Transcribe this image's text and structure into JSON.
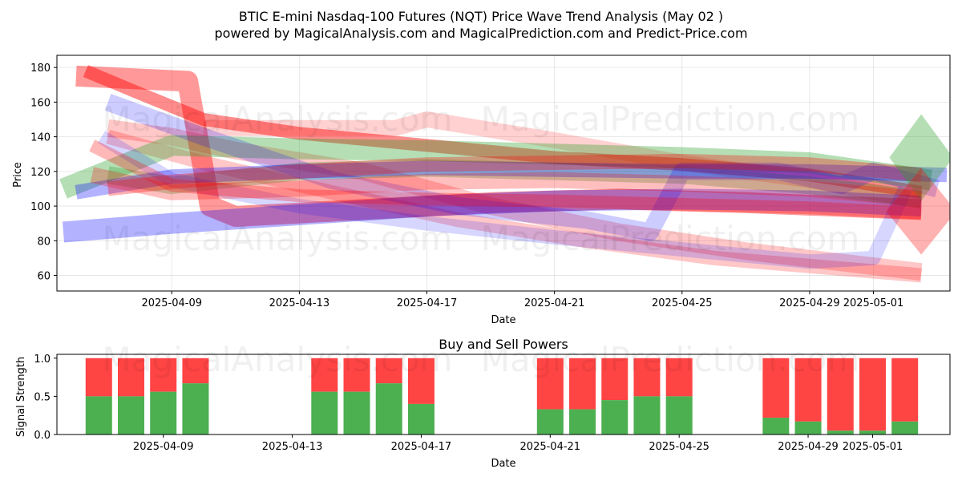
{
  "title_line1": "BTIC E-mini Nasdaq-100 Futures (NQT) Price Wave Trend Analysis (May 02 )",
  "title_line2": "powered by MagicalAnalysis.com and MagicalPrediction.com and Predict-Price.com",
  "watermarks": [
    "MagicalAnalysis.com",
    "MagicalPrediction.com"
  ],
  "colors": {
    "green": "#2ca02c",
    "red": "#ff0000",
    "blue": "#0000ff",
    "buy": "#4caf50",
    "sell": "#ff4444"
  },
  "chart_data": [
    {
      "type": "area",
      "title": "",
      "xlabel": "Date",
      "ylabel": "Price",
      "x_ticks": [
        "2025-04-09",
        "2025-04-13",
        "2025-04-17",
        "2025-04-21",
        "2025-04-25",
        "2025-04-29",
        "2025-05-01"
      ],
      "y_ticks": [
        60,
        80,
        100,
        120,
        140,
        160,
        180
      ],
      "xlim": [
        "2025-04-05.4",
        "2025-05-03.4"
      ],
      "ylim": [
        51,
        187
      ],
      "grid": true,
      "series": [
        {
          "color": "red",
          "opacity": 0.45,
          "width": 16,
          "points": [
            [
              "2025-04-06.3",
              178
            ],
            [
              "2025-04-08",
              165
            ],
            [
              "2025-04-10",
              150
            ],
            [
              "2025-04-13",
              142
            ],
            [
              "2025-04-17",
              135
            ],
            [
              "2025-04-21",
              128
            ],
            [
              "2025-04-25",
              124
            ],
            [
              "2025-04-29",
              118
            ],
            [
              "2025-05-02.5",
              108
            ]
          ]
        },
        {
          "color": "red",
          "opacity": 0.4,
          "width": 26,
          "points": [
            [
              "2025-04-06",
              175
            ],
            [
              "2025-04-09.5",
              172
            ],
            [
              "2025-04-10.2",
              100
            ],
            [
              "2025-04-11",
              94
            ],
            [
              "2025-04-15",
              98
            ],
            [
              "2025-04-19",
              102
            ],
            [
              "2025-04-23",
              104
            ],
            [
              "2025-04-27",
              102
            ],
            [
              "2025-05-02.5",
              98
            ]
          ]
        },
        {
          "color": "red",
          "opacity": 0.22,
          "width": 22,
          "points": [
            [
              "2025-04-07",
              145
            ],
            [
              "2025-04-09",
              140
            ],
            [
              "2025-04-11",
              132
            ],
            [
              "2025-04-15",
              120
            ],
            [
              "2025-04-19",
              100
            ],
            [
              "2025-04-23",
              85
            ],
            [
              "2025-04-27",
              74
            ],
            [
              "2025-05-02.5",
              62
            ]
          ]
        },
        {
          "color": "red",
          "opacity": 0.22,
          "width": 18,
          "points": [
            [
              "2025-04-07",
              140
            ],
            [
              "2025-04-10",
              125
            ],
            [
              "2025-04-14",
              108
            ],
            [
              "2025-04-18",
              92
            ],
            [
              "2025-04-22",
              80
            ],
            [
              "2025-04-26",
              70
            ],
            [
              "2025-05-02.5",
              60
            ]
          ]
        },
        {
          "color": "red",
          "opacity": 0.18,
          "width": 20,
          "points": [
            [
              "2025-04-10",
              145
            ],
            [
              "2025-04-14",
              145
            ],
            [
              "2025-04-16",
              145
            ],
            [
              "2025-04-17",
              150
            ],
            [
              "2025-04-21",
              138
            ],
            [
              "2025-04-25",
              125
            ],
            [
              "2025-04-29",
              115
            ],
            [
              "2025-05-02.5",
              103
            ]
          ]
        },
        {
          "color": "green",
          "opacity": 0.35,
          "width": 26,
          "points": [
            [
              "2025-04-05.6",
              110
            ],
            [
              "2025-04-09",
              135
            ],
            [
              "2025-04-13",
              133
            ],
            [
              "2025-04-17",
              132
            ],
            [
              "2025-04-21",
              130
            ],
            [
              "2025-04-25",
              128
            ],
            [
              "2025-04-29",
              125
            ],
            [
              "2025-05-02.8",
              115
            ]
          ]
        },
        {
          "color": "green",
          "opacity": 0.3,
          "width": 22,
          "points": [
            [
              "2025-04-07",
              118
            ],
            [
              "2025-04-09",
              112
            ],
            [
              "2025-04-13",
              120
            ],
            [
              "2025-04-17",
              122
            ],
            [
              "2025-04-21",
              120
            ],
            [
              "2025-04-25",
              118
            ],
            [
              "2025-04-29",
              112
            ],
            [
              "2025-05-02.5",
              104
            ]
          ]
        },
        {
          "color": "blue",
          "opacity": 0.3,
          "width": 26,
          "points": [
            [
              "2025-04-05.6",
              85
            ],
            [
              "2025-04-09",
              90
            ],
            [
              "2025-04-13",
              95
            ],
            [
              "2025-04-17",
              100
            ],
            [
              "2025-04-21",
              103
            ],
            [
              "2025-04-25",
              104
            ],
            [
              "2025-04-29",
              103
            ],
            [
              "2025-05-02.5",
              100
            ]
          ]
        },
        {
          "color": "blue",
          "opacity": 0.2,
          "width": 22,
          "points": [
            [
              "2025-04-07",
              160
            ],
            [
              "2025-04-10",
              140
            ],
            [
              "2025-04-14",
              115
            ],
            [
              "2025-04-18",
              100
            ],
            [
              "2025-04-22",
              92
            ],
            [
              "2025-04-24",
              85
            ],
            [
              "2025-04-25",
              120
            ],
            [
              "2025-04-28",
              120
            ],
            [
              "2025-04-30",
              112
            ],
            [
              "2025-05-01",
              120
            ],
            [
              "2025-05-03",
              110
            ]
          ]
        },
        {
          "color": "blue",
          "opacity": 0.16,
          "width": 18,
          "points": [
            [
              "2025-04-06.8",
              140
            ],
            [
              "2025-04-09",
              115
            ],
            [
              "2025-04-13",
              100
            ],
            [
              "2025-04-17",
              90
            ],
            [
              "2025-04-21",
              82
            ],
            [
              "2025-04-25",
              75
            ],
            [
              "2025-04-29",
              68
            ],
            [
              "2025-05-01",
              70
            ],
            [
              "2025-05-02",
              110
            ]
          ]
        },
        {
          "color": "blue",
          "opacity": 0.3,
          "width": 18,
          "points": [
            [
              "2025-04-06",
              108
            ],
            [
              "2025-04-09",
              117
            ],
            [
              "2025-04-13",
              120
            ],
            [
              "2025-04-17",
              122
            ],
            [
              "2025-04-21",
              121
            ],
            [
              "2025-04-25",
              120
            ],
            [
              "2025-04-29",
              120
            ],
            [
              "2025-05-03.3",
              118
            ]
          ]
        },
        {
          "color": "red",
          "opacity": 0.3,
          "width": 18,
          "points": [
            [
              "2025-04-07",
              110
            ],
            [
              "2025-04-09",
              114
            ],
            [
              "2025-04-13",
              120
            ],
            [
              "2025-04-17",
              124
            ],
            [
              "2025-04-21",
              125
            ],
            [
              "2025-04-25",
              126
            ],
            [
              "2025-04-29",
              124
            ],
            [
              "2025-05-02.5",
              118
            ]
          ]
        },
        {
          "color": "red",
          "opacity": 0.28,
          "width": 16,
          "points": [
            [
              "2025-04-06.5",
              135
            ],
            [
              "2025-04-09",
              112
            ],
            [
              "2025-04-13",
              106
            ],
            [
              "2025-04-17",
              104
            ],
            [
              "2025-04-21",
              103
            ],
            [
              "2025-04-25",
              101
            ],
            [
              "2025-04-29",
              99
            ],
            [
              "2025-05-02.5",
              96
            ]
          ]
        },
        {
          "color": "red",
          "opacity": 0.25,
          "width": 20,
          "points": [
            [
              "2025-04-06.5",
              118
            ],
            [
              "2025-04-09",
              108
            ],
            [
              "2025-04-13",
              110
            ],
            [
              "2025-04-17",
              114
            ],
            [
              "2025-04-21",
              115
            ],
            [
              "2025-04-25",
              113
            ],
            [
              "2025-04-29",
              110
            ],
            [
              "2025-05-02.5",
              104
            ]
          ]
        }
      ],
      "diamonds": [
        {
          "color": "green",
          "opacity": 0.35,
          "center": [
            "2025-05-02.5",
            128
          ],
          "half_w_days": 1.0,
          "half_h": 25
        },
        {
          "color": "red",
          "opacity": 0.3,
          "center": [
            "2025-05-02.5",
            97
          ],
          "half_w_days": 1.1,
          "half_h": 25
        }
      ]
    },
    {
      "type": "bar",
      "title": "Buy and Sell Powers",
      "xlabel": "Date",
      "ylabel": "Signal Strength",
      "x_ticks": [
        "2025-04-09",
        "2025-04-13",
        "2025-04-17",
        "2025-04-21",
        "2025-04-25",
        "2025-04-29",
        "2025-05-01"
      ],
      "y_ticks": [
        0.0,
        0.5,
        1.0
      ],
      "ylim": [
        0,
        1.05
      ],
      "series": [
        {
          "name": "buy",
          "color": "buy"
        },
        {
          "name": "sell",
          "color": "sell"
        }
      ],
      "categories": [
        "2025-04-07",
        "2025-04-08",
        "2025-04-09",
        "2025-04-10",
        "2025-04-14",
        "2025-04-15",
        "2025-04-16",
        "2025-04-17",
        "2025-04-21",
        "2025-04-22",
        "2025-04-23",
        "2025-04-24",
        "2025-04-25",
        "2025-04-28",
        "2025-04-29",
        "2025-04-30",
        "2025-05-01",
        "2025-05-02"
      ],
      "buy": [
        0.5,
        0.5,
        0.56,
        0.67,
        0.56,
        0.56,
        0.67,
        0.4,
        0.33,
        0.33,
        0.45,
        0.5,
        0.5,
        0.22,
        0.17,
        0.05,
        0.05,
        0.17
      ]
    }
  ]
}
